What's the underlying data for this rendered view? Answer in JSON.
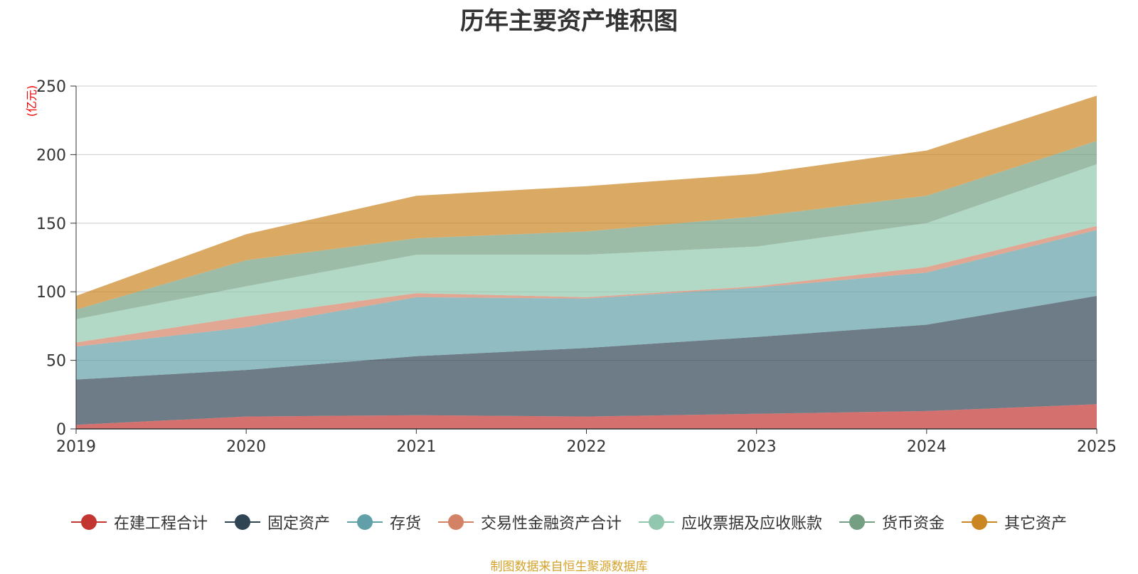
{
  "chart_data": {
    "type": "area",
    "stacked": true,
    "title": "历年主要资产堆积图",
    "unit_label": "(亿元)",
    "categories": [
      "2019",
      "2020",
      "2021",
      "2022",
      "2023",
      "2024",
      "2025"
    ],
    "ylim": [
      0,
      250
    ],
    "yticks": [
      "0",
      "50",
      "100",
      "150",
      "200",
      "250"
    ],
    "grid": true,
    "legend_position": "bottom",
    "series": [
      {
        "name": "在建工程合计",
        "color": "#c23531",
        "values": [
          3,
          9,
          10,
          9,
          11,
          13,
          18
        ]
      },
      {
        "name": "固定资产",
        "color": "#2f4554",
        "values": [
          33,
          34,
          43,
          50,
          56,
          63,
          79
        ]
      },
      {
        "name": "存货",
        "color": "#61a0a8",
        "values": [
          24,
          31,
          43,
          36,
          36,
          38,
          48
        ]
      },
      {
        "name": "交易性金融资产合计",
        "color": "#d48265",
        "values": [
          3,
          8,
          3,
          1,
          1,
          4,
          3
        ]
      },
      {
        "name": "应收票据及应收账款",
        "color": "#91c7ae",
        "values": [
          17,
          22,
          28,
          31,
          29,
          32,
          45
        ]
      },
      {
        "name": "货币资金",
        "color": "#749f83",
        "values": [
          7,
          19,
          12,
          17,
          22,
          20,
          17
        ]
      },
      {
        "name": "其它资产",
        "color": "#ca8622",
        "values": [
          10,
          19,
          31,
          33,
          31,
          33,
          33
        ]
      }
    ],
    "footer_text": "制图数据来自恒生聚源数据库"
  }
}
